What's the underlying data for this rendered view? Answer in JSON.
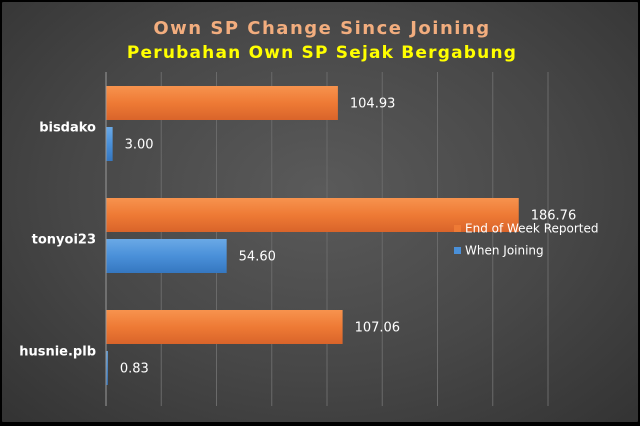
{
  "chart_data": {
    "type": "bar",
    "orientation": "horizontal",
    "title": "Own SP Change Since Joining",
    "subtitle": "Perubahan Own SP Sejak Bergabung",
    "categories": [
      "bisdako",
      "tonyoi23",
      "husnie.plb"
    ],
    "series": [
      {
        "name": "End of Week Reported",
        "values": [
          104.93,
          186.76,
          107.06
        ],
        "color": "#ee7a35"
      },
      {
        "name": "When Joining",
        "values": [
          3.0,
          54.6,
          0.83
        ],
        "color": "#4a90d9"
      }
    ],
    "data_labels": [
      [
        "104.93",
        "186.76",
        "107.06"
      ],
      [
        "3.00",
        "54.60",
        "0.83"
      ]
    ],
    "xlim": [
      0,
      200
    ],
    "grid": true,
    "legend": "right",
    "colors": {
      "title": "#f2ad7e",
      "subtitle": "#ffff00",
      "grid": "#6a6a6a",
      "axis": "#9a9a9a"
    }
  }
}
